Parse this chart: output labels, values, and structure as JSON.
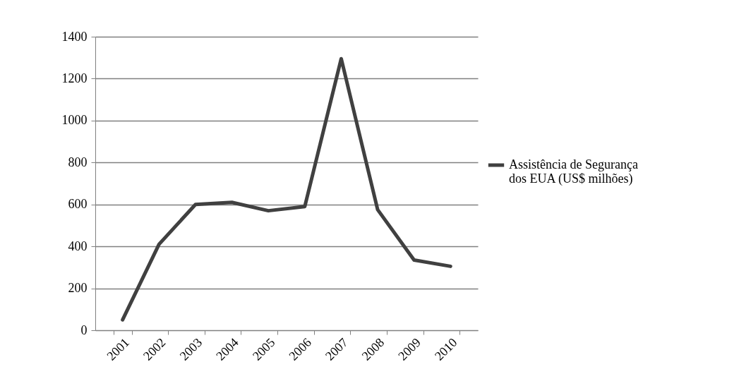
{
  "chart_data": {
    "type": "line",
    "categories": [
      "2001",
      "2002",
      "2003",
      "2004",
      "2005",
      "2006",
      "2007",
      "2008",
      "2009",
      "2010"
    ],
    "series": [
      {
        "name": "Assistência de Segurança dos EUA (US$ milhões)",
        "color": "#404040",
        "values": [
          50,
          410,
          600,
          610,
          570,
          590,
          1295,
          575,
          335,
          305
        ]
      }
    ],
    "ylim": [
      0,
      1400
    ],
    "yticks": [
      0,
      200,
      400,
      600,
      800,
      1000,
      1200,
      1400
    ],
    "grid": "y",
    "legend": "right",
    "marker": "none",
    "line_style": "solid"
  }
}
